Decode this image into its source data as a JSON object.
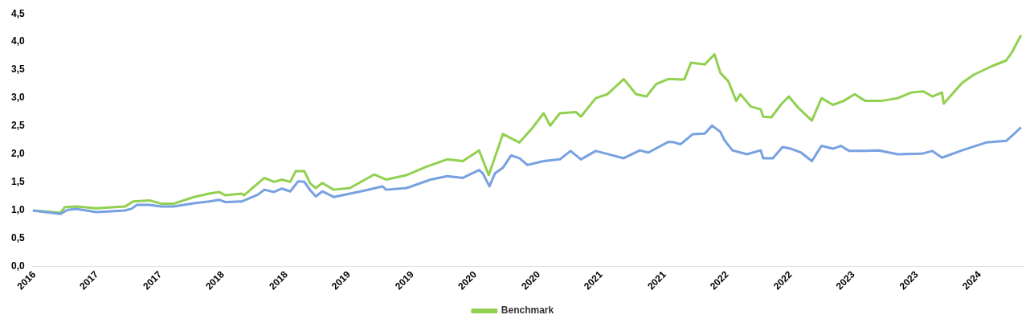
{
  "chart_data": {
    "type": "line",
    "legend": "bottom",
    "grid": false,
    "marker": "none",
    "line_style": "solid",
    "xlim": [
      "2016-10-27",
      "2024-09-03"
    ],
    "xticks": [
      {
        "value": "2016-11-01",
        "label": "2016"
      },
      {
        "value": "2017-05-01",
        "label": "2017"
      },
      {
        "value": "2017-11-01",
        "label": "2017"
      },
      {
        "value": "2018-05-01",
        "label": "2018"
      },
      {
        "value": "2018-11-01",
        "label": "2018"
      },
      {
        "value": "2019-05-01",
        "label": "2019"
      },
      {
        "value": "2019-11-01",
        "label": "2019"
      },
      {
        "value": "2020-05-01",
        "label": "2020"
      },
      {
        "value": "2020-11-01",
        "label": "2020"
      },
      {
        "value": "2021-05-01",
        "label": "2021"
      },
      {
        "value": "2021-11-01",
        "label": "2021"
      },
      {
        "value": "2022-05-01",
        "label": "2022"
      },
      {
        "value": "2022-11-01",
        "label": "2022"
      },
      {
        "value": "2023-05-01",
        "label": "2023"
      },
      {
        "value": "2023-11-01",
        "label": "2023"
      },
      {
        "value": "2024-05-01",
        "label": "2024"
      }
    ],
    "ylim": [
      0,
      4.5
    ],
    "yticks": [
      {
        "value": 0,
        "label": "0,0"
      },
      {
        "value": 0.5,
        "label": "0,5"
      },
      {
        "value": 1,
        "label": "1,0"
      },
      {
        "value": 1.5,
        "label": "1,5"
      },
      {
        "value": 2,
        "label": "2,0"
      },
      {
        "value": 2.5,
        "label": "2,5"
      },
      {
        "value": 3,
        "label": "3,0"
      },
      {
        "value": 3.5,
        "label": "3,5"
      },
      {
        "value": 4,
        "label": "4,0"
      },
      {
        "value": 4.5,
        "label": "4,5"
      }
    ],
    "series": [
      {
        "color": "#77a1e0",
        "x": [
          "2016-10-27",
          "2017-01-16",
          "2017-02-05",
          "2017-03-02",
          "2017-04-30",
          "2017-07-21",
          "2017-08-09",
          "2017-08-25",
          "2017-09-30",
          "2017-11-04",
          "2017-12-09",
          "2018-02-06",
          "2018-03-22",
          "2018-04-20",
          "2018-05-08",
          "2018-06-24",
          "2018-08-10",
          "2018-08-29",
          "2018-09-26",
          "2018-10-19",
          "2018-11-12",
          "2018-12-05",
          "2018-12-23",
          "2019-01-09",
          "2019-01-25",
          "2019-02-13",
          "2019-03-18",
          "2019-05-04",
          "2019-06-20",
          "2019-08-06",
          "2019-08-17",
          "2019-10-15",
          "2019-12-24",
          "2020-02-10",
          "2020-03-26",
          "2020-05-12",
          "2020-05-23",
          "2020-06-11",
          "2020-06-27",
          "2020-07-20",
          "2020-08-13",
          "2020-09-06",
          "2020-09-29",
          "2020-11-15",
          "2021-01-01",
          "2021-02-01",
          "2021-03-03",
          "2021-04-15",
          "2021-07-05",
          "2021-08-21",
          "2021-09-14",
          "2021-11-11",
          "2021-11-23",
          "2021-12-16",
          "2021-12-23",
          "2022-01-21",
          "2022-02-25",
          "2022-03-18",
          "2022-04-11",
          "2022-04-23",
          "2022-05-16",
          "2022-06-27",
          "2022-08-06",
          "2022-08-13",
          "2022-09-10",
          "2022-10-08",
          "2022-11-01",
          "2022-12-01",
          "2023-01-01",
          "2023-01-29",
          "2023-03-03",
          "2023-03-26",
          "2023-04-19",
          "2023-06-05",
          "2023-07-14",
          "2023-09-07",
          "2023-11-16",
          "2023-12-16",
          "2024-01-13",
          "2024-03-11",
          "2024-05-20",
          "2024-07-17",
          "2024-08-03",
          "2024-08-29"
        ],
        "values": [
          1.0,
          0.94,
          1.01,
          1.03,
          0.97,
          1.0,
          1.03,
          1.1,
          1.1,
          1.07,
          1.07,
          1.13,
          1.16,
          1.19,
          1.15,
          1.16,
          1.28,
          1.37,
          1.33,
          1.39,
          1.34,
          1.52,
          1.51,
          1.36,
          1.25,
          1.34,
          1.24,
          1.3,
          1.36,
          1.43,
          1.37,
          1.4,
          1.55,
          1.61,
          1.58,
          1.72,
          1.66,
          1.43,
          1.66,
          1.76,
          1.98,
          1.93,
          1.81,
          1.88,
          1.91,
          2.06,
          1.91,
          2.06,
          1.93,
          2.07,
          2.03,
          2.22,
          2.22,
          2.18,
          2.21,
          2.36,
          2.37,
          2.51,
          2.4,
          2.25,
          2.07,
          2.0,
          2.07,
          1.93,
          1.93,
          2.13,
          2.1,
          2.03,
          1.88,
          2.15,
          2.1,
          2.15,
          2.06,
          2.06,
          2.07,
          2.0,
          2.01,
          2.06,
          1.94,
          2.07,
          2.21,
          2.24,
          2.33,
          2.48
        ]
      },
      {
        "name": "Benchmark",
        "color": "#92d050",
        "x": [
          "2016-10-27",
          "2017-01-16",
          "2017-01-28",
          "2017-03-02",
          "2017-04-30",
          "2017-07-21",
          "2017-08-14",
          "2017-09-30",
          "2017-11-04",
          "2017-12-09",
          "2018-02-06",
          "2018-03-22",
          "2018-04-20",
          "2018-05-08",
          "2018-06-24",
          "2018-07-01",
          "2018-08-10",
          "2018-08-29",
          "2018-09-26",
          "2018-10-19",
          "2018-11-12",
          "2018-11-28",
          "2018-12-23",
          "2019-01-09",
          "2019-01-25",
          "2019-02-13",
          "2019-03-18",
          "2019-05-04",
          "2019-07-13",
          "2019-08-17",
          "2019-10-15",
          "2019-12-12",
          "2020-02-10",
          "2020-03-26",
          "2020-05-12",
          "2020-06-09",
          "2020-07-20",
          "2020-09-06",
          "2020-10-11",
          "2020-11-15",
          "2020-12-04",
          "2021-01-01",
          "2021-02-17",
          "2021-03-03",
          "2021-04-15",
          "2021-05-19",
          "2021-07-05",
          "2021-08-10",
          "2021-09-09",
          "2021-10-07",
          "2021-11-11",
          "2021-12-21",
          "2021-12-28",
          "2022-01-16",
          "2022-02-25",
          "2022-03-25",
          "2022-04-11",
          "2022-05-04",
          "2022-05-27",
          "2022-06-08",
          "2022-07-08",
          "2022-08-06",
          "2022-08-13",
          "2022-09-06",
          "2022-10-03",
          "2022-10-26",
          "2022-11-24",
          "2023-01-01",
          "2023-01-29",
          "2023-03-03",
          "2023-04-03",
          "2023-05-05",
          "2023-06-05",
          "2023-07-21",
          "2023-09-07",
          "2023-10-16",
          "2023-11-20",
          "2023-12-16",
          "2024-01-13",
          "2024-01-18",
          "2024-03-11",
          "2024-04-15",
          "2024-06-06",
          "2024-07-17",
          "2024-08-03",
          "2024-08-29"
        ],
        "values": [
          1.0,
          0.96,
          1.06,
          1.07,
          1.04,
          1.07,
          1.16,
          1.18,
          1.12,
          1.12,
          1.24,
          1.3,
          1.33,
          1.27,
          1.3,
          1.27,
          1.48,
          1.58,
          1.51,
          1.55,
          1.51,
          1.7,
          1.7,
          1.48,
          1.4,
          1.49,
          1.37,
          1.4,
          1.64,
          1.55,
          1.63,
          1.78,
          1.91,
          1.88,
          2.07,
          1.63,
          2.36,
          2.21,
          2.45,
          2.73,
          2.51,
          2.73,
          2.75,
          2.67,
          3.0,
          3.07,
          3.34,
          3.07,
          3.03,
          3.25,
          3.34,
          3.33,
          3.34,
          3.63,
          3.6,
          3.78,
          3.45,
          3.3,
          2.95,
          3.07,
          2.85,
          2.8,
          2.67,
          2.66,
          2.88,
          3.03,
          2.82,
          2.6,
          3.0,
          2.88,
          2.95,
          3.07,
          2.95,
          2.95,
          3.0,
          3.1,
          3.12,
          3.03,
          3.1,
          2.9,
          3.27,
          3.42,
          3.57,
          3.67,
          3.82,
          4.12
        ]
      }
    ]
  }
}
